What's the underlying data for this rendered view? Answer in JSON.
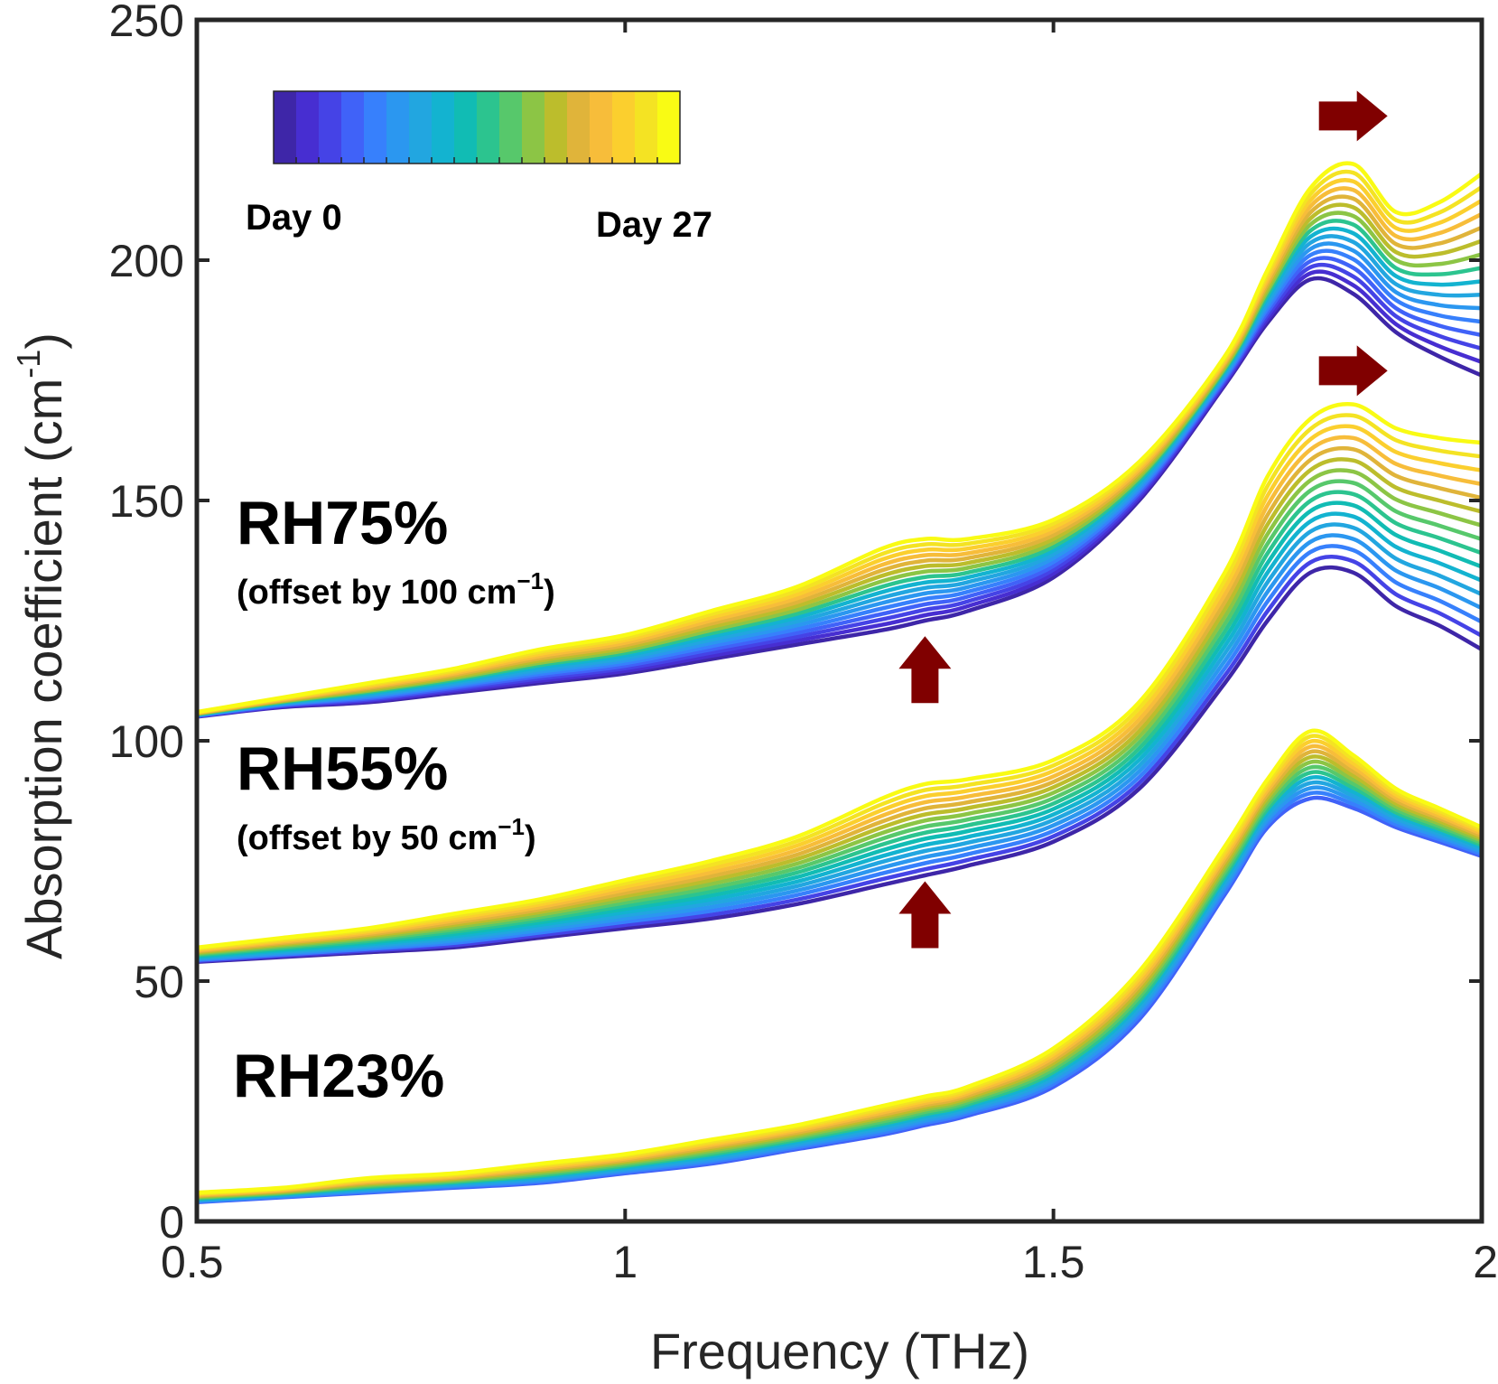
{
  "chart_data": {
    "type": "line",
    "xlabel": "Frequency (THz)",
    "ylabel_main": "Absorption coefficient (cm",
    "ylabel_sup": "-1",
    "ylabel_close": ")",
    "xlim": [
      0.5,
      2
    ],
    "ylim": [
      0,
      250
    ],
    "xticks": [
      "0.5",
      "1",
      "1.5",
      "2"
    ],
    "yticks": [
      "0",
      "50",
      "100",
      "150",
      "200",
      "250"
    ],
    "grid": false,
    "colorbar": {
      "colors": [
        "#3e26a8",
        "#472ed1",
        "#4543e6",
        "#4062f8",
        "#3780fc",
        "#2b97f0",
        "#22a6e0",
        "#13b3d0",
        "#11bcb4",
        "#2cc48f",
        "#57c86b",
        "#8cc545",
        "#bcbd2c",
        "#e0b43a",
        "#f7bd3a",
        "#fbcf2e",
        "#f4e323",
        "#f9fb14"
      ],
      "start_label": "Day 0",
      "end_label": "Day 27"
    },
    "groups": [
      {
        "label": "RH75%",
        "offset_prefix": "(offset by 100 cm",
        "offset_sup": "−1",
        "offset_suffix": ")",
        "offset": 100,
        "series_colors": [
          "#3e26a8",
          "#472ed1",
          "#4543e6",
          "#4062f8",
          "#3780fc",
          "#2b97f0",
          "#22a6e0",
          "#13b3d0",
          "#2cc48f",
          "#8cc545",
          "#bcbd2c",
          "#e0b43a",
          "#f7bd3a",
          "#fbcf2e",
          "#f4e323",
          "#f9fb14"
        ],
        "x": [
          0.5,
          0.6,
          0.7,
          0.8,
          0.9,
          1.0,
          1.1,
          1.2,
          1.3,
          1.35,
          1.4,
          1.5,
          1.6,
          1.7,
          1.75,
          1.8,
          1.85,
          1.9,
          1.95,
          2.0
        ],
        "low_curve": [
          105,
          107,
          108,
          110,
          112,
          114,
          117,
          120,
          123,
          125,
          127,
          134,
          150,
          174,
          187,
          196,
          193,
          185,
          180,
          176
        ],
        "high_curve": [
          106,
          109,
          112,
          115,
          119,
          122,
          127,
          132,
          140,
          142,
          142,
          146,
          158,
          180,
          198,
          215,
          220,
          210,
          212,
          218
        ]
      },
      {
        "label": "RH55%",
        "offset_prefix": "(offset by 50 cm",
        "offset_sup": "−1",
        "offset_suffix": ")",
        "offset": 50,
        "series_colors": [
          "#3e26a8",
          "#4543e6",
          "#3780fc",
          "#2b97f0",
          "#22a6e0",
          "#13b3d0",
          "#11bcb4",
          "#2cc48f",
          "#57c86b",
          "#8cc545",
          "#bcbd2c",
          "#e0b43a",
          "#f7bd3a",
          "#fbcf2e",
          "#f4e323",
          "#f9fb14"
        ],
        "x": [
          0.5,
          0.6,
          0.7,
          0.8,
          0.9,
          1.0,
          1.1,
          1.2,
          1.3,
          1.35,
          1.4,
          1.5,
          1.6,
          1.7,
          1.75,
          1.8,
          1.85,
          1.9,
          1.95,
          2.0
        ],
        "low_curve": [
          54,
          55,
          56,
          57,
          59,
          61,
          63,
          66,
          70,
          72,
          74,
          79,
          90,
          112,
          125,
          135,
          135,
          128,
          124,
          119
        ],
        "high_curve": [
          57,
          59,
          61,
          64,
          67,
          71,
          75,
          80,
          88,
          91,
          92,
          96,
          108,
          135,
          155,
          167,
          170,
          165,
          163,
          162
        ]
      },
      {
        "label": "RH23%",
        "offset": 0,
        "series_colors": [
          "#4062f8",
          "#3780fc",
          "#2b97f0",
          "#22a6e0",
          "#13b3d0",
          "#2cc48f",
          "#57c86b",
          "#8cc545",
          "#bcbd2c",
          "#e0b43a",
          "#f7bd3a",
          "#fbcf2e",
          "#f4e323",
          "#f9fb14"
        ],
        "x": [
          0.5,
          0.6,
          0.7,
          0.8,
          0.9,
          1.0,
          1.1,
          1.2,
          1.3,
          1.35,
          1.4,
          1.5,
          1.6,
          1.7,
          1.75,
          1.8,
          1.85,
          1.9,
          1.95,
          2.0
        ],
        "low_curve": [
          4,
          5,
          6,
          7,
          8,
          10,
          12,
          15,
          18,
          20,
          22,
          28,
          42,
          68,
          82,
          88,
          86,
          82,
          79,
          76
        ],
        "high_curve": [
          6,
          7,
          9,
          10,
          12,
          14,
          17,
          20,
          24,
          26,
          28,
          36,
          52,
          78,
          92,
          102,
          97,
          90,
          86,
          82
        ]
      }
    ],
    "arrows": [
      {
        "direction": "right",
        "x": 1.85,
        "y": 230
      },
      {
        "direction": "right",
        "x": 1.85,
        "y": 177
      },
      {
        "direction": "up",
        "x": 1.35,
        "y": 115
      },
      {
        "direction": "up",
        "x": 1.35,
        "y": 64
      }
    ],
    "arrow_color": "#800000"
  }
}
